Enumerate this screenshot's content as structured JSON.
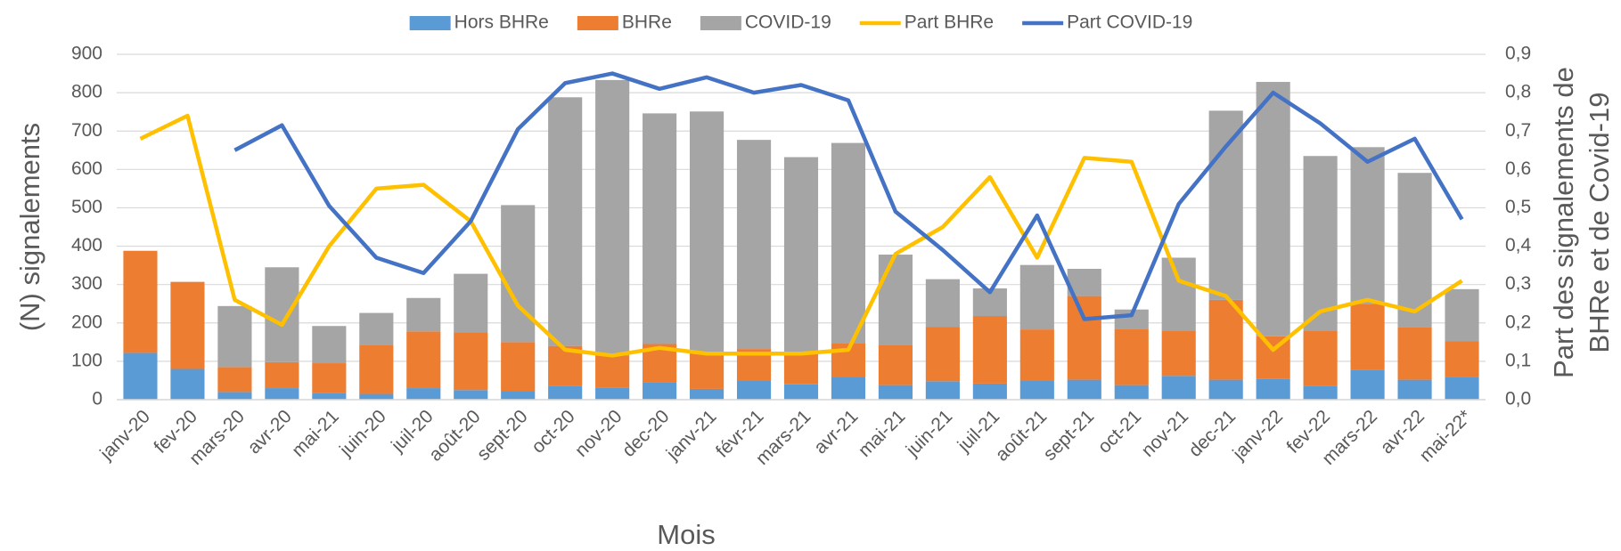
{
  "chart_data": {
    "type": "bar",
    "x_label": "Mois",
    "y_label": "(N) signalements",
    "y2_label": [
      "Part des signalements de",
      "BHRe et de Covid-19"
    ],
    "categories": [
      "janv-20",
      "fev-20",
      "mars-20",
      "avr-20",
      "mai-21",
      "juin-20",
      "juil-20",
      "août-20",
      "sept-20",
      "oct-20",
      "nov-20",
      "dec-20",
      "janv-21",
      "févr-21",
      "mars-21",
      "avr-21",
      "mai-21",
      "juin-21",
      "juil-21",
      "août-21",
      "sept-21",
      "oct-21",
      "nov-21",
      "dec-21",
      "janv-22",
      "fev-22",
      "mars-22",
      "avr-22",
      "mai-22*"
    ],
    "series": [
      {
        "name": "Hors BHRe",
        "color": "#5b9bd5",
        "kind": "bar",
        "values": [
          122,
          80,
          20,
          30,
          18,
          15,
          30,
          25,
          22,
          35,
          32,
          45,
          28,
          50,
          40,
          58,
          38,
          48,
          42,
          50,
          52,
          38,
          62,
          52,
          55,
          35,
          78,
          52,
          60
        ]
      },
      {
        "name": "BHRe",
        "color": "#ed7d31",
        "kind": "bar",
        "values": [
          266,
          227,
          65,
          68,
          77,
          128,
          148,
          150,
          128,
          105,
          83,
          100,
          97,
          82,
          85,
          90,
          105,
          142,
          176,
          133,
          218,
          147,
          118,
          208,
          110,
          145,
          172,
          136,
          92
        ]
      },
      {
        "name": "COVID-19",
        "color": "#a5a5a5",
        "kind": "bar",
        "values": [
          0,
          0,
          159,
          247,
          97,
          83,
          87,
          153,
          357,
          648,
          718,
          601,
          626,
          545,
          507,
          521,
          235,
          124,
          72,
          168,
          71,
          50,
          190,
          493,
          663,
          455,
          408,
          403,
          136
        ]
      },
      {
        "name": "Part BHRe",
        "color": "#ffc000",
        "kind": "line",
        "axis": "y2",
        "values": [
          0.68,
          0.74,
          0.26,
          0.195,
          0.4,
          0.55,
          0.56,
          0.465,
          0.245,
          0.13,
          0.115,
          0.135,
          0.12,
          0.12,
          0.12,
          0.13,
          0.38,
          0.45,
          0.58,
          0.37,
          0.63,
          0.62,
          0.31,
          0.27,
          0.13,
          0.23,
          0.26,
          0.23,
          0.31
        ]
      },
      {
        "name": "Part COVID-19",
        "color": "#4472c4",
        "kind": "line",
        "axis": "y2",
        "values": [
          null,
          null,
          0.65,
          0.715,
          0.505,
          0.37,
          0.33,
          0.465,
          0.705,
          0.825,
          0.85,
          0.81,
          0.84,
          0.8,
          0.82,
          0.78,
          0.49,
          0.39,
          0.28,
          0.48,
          0.21,
          0.22,
          0.51,
          0.66,
          0.8,
          0.72,
          0.62,
          0.68,
          0.47
        ]
      }
    ],
    "ylim": [
      0,
      900
    ],
    "yticks": [
      0,
      100,
      200,
      300,
      400,
      500,
      600,
      700,
      800,
      900
    ],
    "y2lim": [
      0,
      0.9
    ],
    "y2ticks": [
      {
        "value": 0,
        "label": "0,0"
      },
      {
        "value": 0.1,
        "label": "0,1"
      },
      {
        "value": 0.2,
        "label": "0,2"
      },
      {
        "value": 0.3,
        "label": "0,3"
      },
      {
        "value": 0.4,
        "label": "0,4"
      },
      {
        "value": 0.5,
        "label": "0,5"
      },
      {
        "value": 0.6,
        "label": "0,6"
      },
      {
        "value": 0.7,
        "label": "0,7"
      },
      {
        "value": 0.8,
        "label": "0,8"
      },
      {
        "value": 0.9,
        "label": "0,9"
      }
    ],
    "grid": true,
    "legend": "top"
  }
}
